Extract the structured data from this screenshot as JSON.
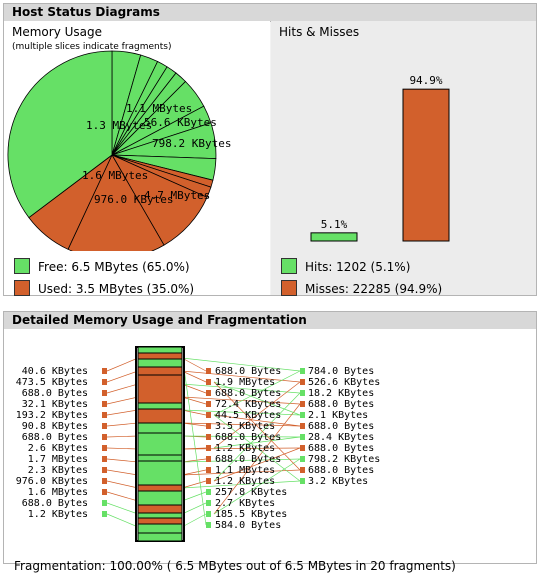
{
  "panel1": {
    "title": "Host Status Diagrams",
    "memory": {
      "title": "Memory Usage",
      "subtitle": "(multiple slices indicate fragments)",
      "slice_labels": [
        "1.1 MBytes",
        "56.6 KBytes",
        "1.3 MBytes",
        "798.2 KBytes",
        "1.6 MBytes",
        "976.0 KBytes",
        "4.7 MBytes"
      ],
      "legend": [
        {
          "label": "Free: 6.5 MBytes (65.0%)",
          "color": "#66e066"
        },
        {
          "label": "Used: 3.5 MBytes (35.0%)",
          "color": "#d2602c"
        }
      ]
    },
    "hits": {
      "title": "Hits & Misses",
      "legend": [
        {
          "label": "Hits: 1202 (5.1%)",
          "color": "#66e066"
        },
        {
          "label": "Misses: 22285 (94.9%)",
          "color": "#d2602c"
        }
      ]
    }
  },
  "chart_data": {
    "type": "bar",
    "categories": [
      "Hits",
      "Misses"
    ],
    "values": [
      5.1,
      94.9
    ],
    "data_labels": [
      "5.1%",
      "94.9%"
    ],
    "colors": [
      "#66e066",
      "#d2602c"
    ],
    "ylim": [
      0,
      100
    ]
  },
  "panel2": {
    "title": "Detailed Memory Usage and Fragmentation",
    "left_labels": [
      "40.6 KBytes",
      "473.5 KBytes",
      "688.0 Bytes",
      "32.1 KBytes",
      "193.2 KBytes",
      "90.8 KBytes",
      "688.0 Bytes",
      "2.6 KBytes",
      "1.7 MBytes",
      "2.3 KBytes",
      "976.0 KBytes",
      "1.6 MBytes",
      "688.0 Bytes",
      "1.2 KBytes"
    ],
    "mid_labels": [
      "688.0 Bytes",
      "1.9 MBytes",
      "688.0 Bytes",
      "72.4 KBytes",
      "44.5 KBytes",
      "3.5 KBytes",
      "688.0 Bytes",
      "1.2 KBytes",
      "688.0 Bytes",
      "1.1 MBytes",
      "1.2 KBytes",
      "257.8 KBytes",
      "2.7 KBytes",
      "185.5 KBytes",
      "584.0 Bytes"
    ],
    "right_labels": [
      "784.0 Bytes",
      "526.6 KBytes",
      "18.2 KBytes",
      "688.0 Bytes",
      "2.1 KBytes",
      "688.0 Bytes",
      "28.4 KBytes",
      "688.0 Bytes",
      "798.2 KBytes",
      "688.0 Bytes",
      "3.2 KBytes"
    ],
    "fragmentation": "Fragmentation: 100.00% ( 6.5 MBytes out of 6.5 MBytes in 20 fragments)",
    "colors": {
      "free": "#66e066",
      "used": "#d2602c"
    }
  }
}
